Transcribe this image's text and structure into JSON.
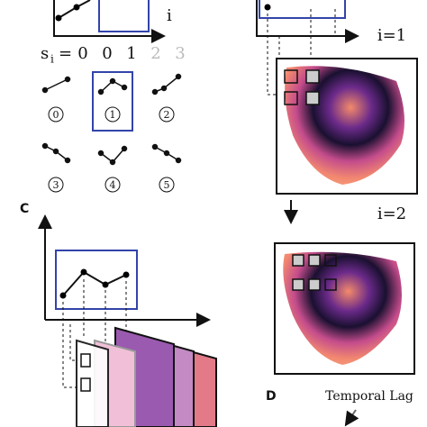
{
  "axis_label": "i",
  "sequence": {
    "label": "s",
    "subscript": "i",
    "equals": "=",
    "values": [
      0,
      0,
      1,
      2,
      3
    ]
  },
  "patterns": [
    "0",
    "1",
    "2",
    "3",
    "4",
    "5"
  ],
  "steps": [
    "i=1",
    "i=2"
  ],
  "panel_labels": [
    "C",
    "D"
  ],
  "temporal_lag": "Temporal Lag"
}
